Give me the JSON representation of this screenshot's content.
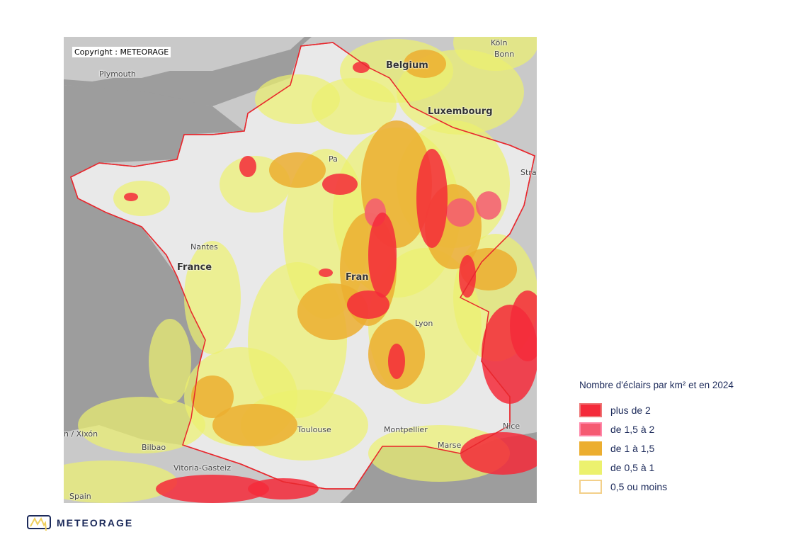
{
  "map": {
    "copyright": "Copyright : METEORAGE",
    "labels": {
      "plymouth": "Plymouth",
      "belgium": "Belgium",
      "koln": "Köln",
      "bonn": "Bonn",
      "luxembourg": "Luxembourg",
      "paris": "Pa",
      "nantes": "Nantes",
      "france": "France",
      "france2": "Fran",
      "lyon": "Lyon",
      "toulouse": "Toulouse",
      "montpellier": "Montpellier",
      "marseille": "Marse",
      "nice": "Nice",
      "strasbourg": "Stra",
      "bilbao": "Bilbao",
      "vitoria": "Vitoria-Gasteiz",
      "spain": "Spain",
      "xixon": "n / Xixón"
    }
  },
  "legend": {
    "title": "Nombre d'éclairs par km² et en 2024",
    "items": [
      {
        "label": "plus de 2",
        "color": "#f42a3a"
      },
      {
        "label": "de 1,5 à 2",
        "color": "#f55a72"
      },
      {
        "label": "de 1 à 1,5",
        "color": "#ecae30"
      },
      {
        "label": "de 0,5 à 1",
        "color": "#ecf16e"
      },
      {
        "label": "0,5 ou moins",
        "color": "#ffffff"
      }
    ]
  },
  "logo": {
    "name": "METEORAGE"
  }
}
